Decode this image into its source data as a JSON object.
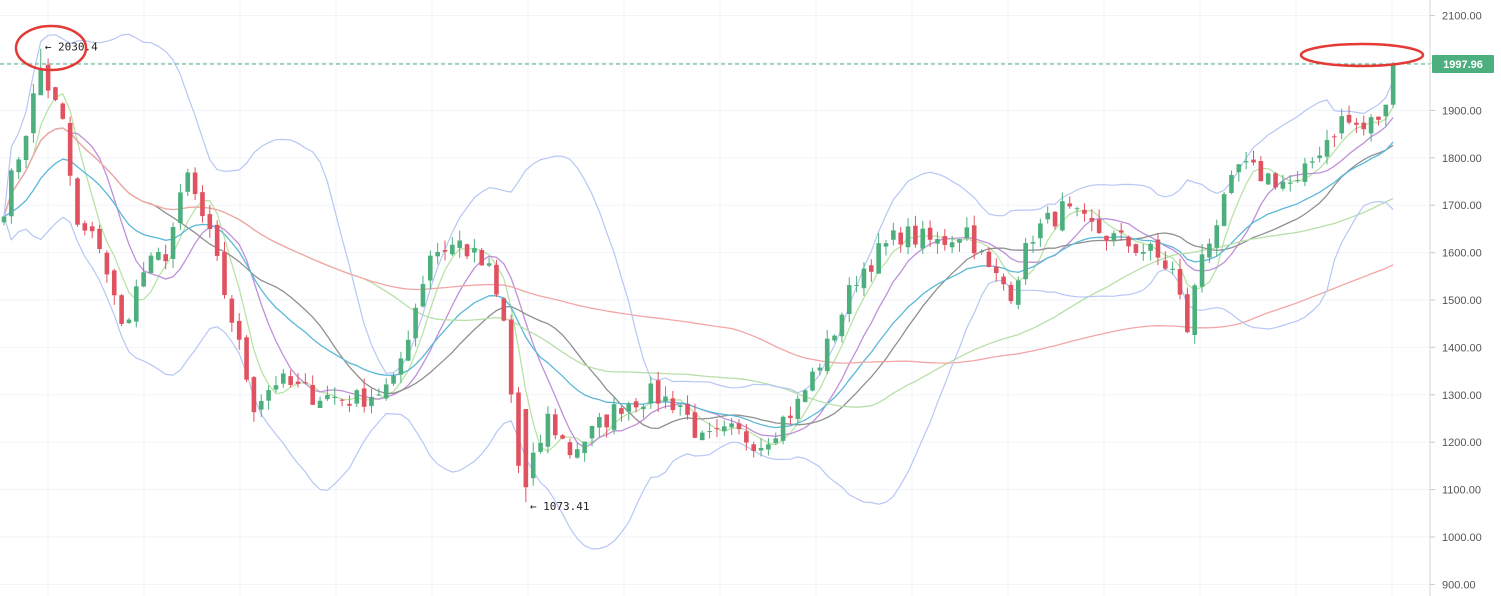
{
  "chart_data": {
    "type": "candlestick",
    "title": "",
    "xlabel": "",
    "ylabel": "",
    "ylim": [
      900,
      2100
    ],
    "y_ticks": [
      "900.00",
      "1000.00",
      "1100.00",
      "1200.00",
      "1300.00",
      "1400.00",
      "1500.00",
      "1600.00",
      "1700.00",
      "1800.00",
      "1900.00",
      "2000.00",
      "2100.00"
    ],
    "grid": true,
    "colors": {
      "up": "#26a69a",
      "up_fill": "#4caf7d",
      "down": "#e05260",
      "last_price_badge": "#4caf7d",
      "highlight_ellipse": "#e53935"
    },
    "last_price": {
      "value": 1997.96,
      "label": "1997.96"
    },
    "annotations": [
      {
        "label": "2030.4",
        "value": 2030.4,
        "kind": "high",
        "bar_index": 5
      },
      {
        "label": "1073.41",
        "value": 1073.41,
        "kind": "low",
        "bar_index": 71
      }
    ],
    "highlights": [
      {
        "target": "high",
        "bar_index": 5,
        "value": 2030.4
      },
      {
        "target": "last_price",
        "value": 1997.96
      }
    ],
    "anchors": [
      [
        0,
        1700
      ],
      [
        3,
        1860
      ],
      [
        5,
        1990
      ],
      [
        8,
        1870
      ],
      [
        10,
        1650
      ],
      [
        13,
        1620
      ],
      [
        16,
        1440
      ],
      [
        19,
        1560
      ],
      [
        22,
        1600
      ],
      [
        25,
        1760
      ],
      [
        28,
        1630
      ],
      [
        31,
        1460
      ],
      [
        34,
        1280
      ],
      [
        37,
        1330
      ],
      [
        42,
        1300
      ],
      [
        48,
        1290
      ],
      [
        53,
        1320
      ],
      [
        58,
        1600
      ],
      [
        62,
        1620
      ],
      [
        66,
        1560
      ],
      [
        68,
        1450
      ],
      [
        70,
        1150
      ],
      [
        71,
        1110
      ],
      [
        74,
        1250
      ],
      [
        77,
        1180
      ],
      [
        80,
        1220
      ],
      [
        84,
        1280
      ],
      [
        88,
        1300
      ],
      [
        92,
        1280
      ],
      [
        95,
        1200
      ],
      [
        99,
        1220
      ],
      [
        103,
        1200
      ],
      [
        108,
        1280
      ],
      [
        112,
        1400
      ],
      [
        116,
        1550
      ],
      [
        119,
        1600
      ],
      [
        122,
        1640
      ],
      [
        127,
        1620
      ],
      [
        131,
        1650
      ],
      [
        134,
        1560
      ],
      [
        137,
        1520
      ],
      [
        140,
        1640
      ],
      [
        144,
        1690
      ],
      [
        147,
        1660
      ],
      [
        151,
        1630
      ],
      [
        156,
        1600
      ],
      [
        159,
        1560
      ],
      [
        160,
        1500
      ],
      [
        161,
        1440
      ],
      [
        163,
        1600
      ],
      [
        166,
        1700
      ],
      [
        168,
        1780
      ],
      [
        172,
        1760
      ],
      [
        176,
        1740
      ],
      [
        179,
        1820
      ],
      [
        182,
        1880
      ],
      [
        185,
        1860
      ],
      [
        188,
        1900
      ],
      [
        189,
        1997.96
      ]
    ],
    "bars": 190,
    "seed": 7,
    "overlays": [
      {
        "type": "SMA",
        "period": 5,
        "color": "#b9e3a6"
      },
      {
        "type": "SMA",
        "period": 10,
        "color": "#c090d8"
      },
      {
        "type": "SMA",
        "period": 20,
        "color": "#909090"
      },
      {
        "type": "EMA",
        "period": 20,
        "color": "#5bb8d8"
      },
      {
        "type": "SMA",
        "period": 50,
        "color": "#b8dfa8"
      },
      {
        "type": "SMA",
        "period": 100,
        "color": "#f3a6a6"
      },
      {
        "type": "BB",
        "period": 20,
        "mult": 2,
        "color": "#b7c7f5"
      }
    ]
  }
}
